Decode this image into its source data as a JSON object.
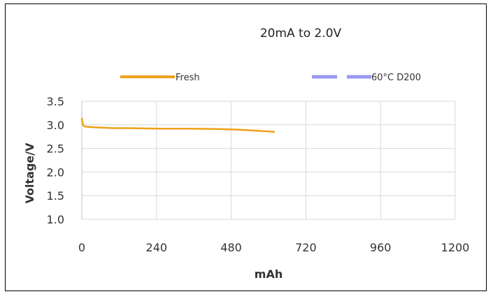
{
  "chart_data": {
    "type": "line",
    "title": "20mA to 2.0V",
    "xlabel": "mAh",
    "ylabel": "Voltage/V",
    "xlim": [
      0,
      1200
    ],
    "ylim": [
      1.0,
      3.5
    ],
    "x_ticks": [
      "0",
      "240",
      "480",
      "720",
      "960",
      "1200"
    ],
    "y_ticks": [
      "1.0",
      "1.5",
      "2.0",
      "2.5",
      "3.0",
      "3.5"
    ],
    "grid": true,
    "legend_position": "top",
    "series": [
      {
        "name": "Fresh",
        "color": "#f0a018",
        "style": "solid",
        "x": [
          0,
          2,
          4,
          8,
          15,
          40,
          70,
          100,
          150,
          250,
          350,
          450,
          500,
          550,
          600,
          620
        ],
        "y": [
          3.15,
          3.05,
          3.0,
          2.97,
          2.96,
          2.95,
          2.94,
          2.93,
          2.93,
          2.92,
          2.92,
          2.91,
          2.9,
          2.88,
          2.86,
          2.85
        ]
      },
      {
        "name": "60°C D200",
        "color": "#9999ee",
        "style": "dashed",
        "x": [],
        "y": []
      }
    ]
  }
}
